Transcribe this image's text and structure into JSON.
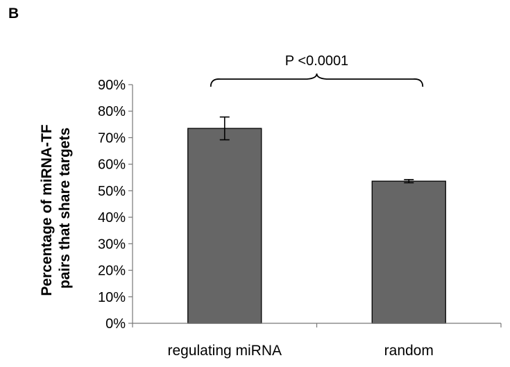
{
  "panel_label": "B",
  "chart_data": {
    "type": "bar",
    "categories": [
      "regulating miRNA",
      "random"
    ],
    "values": [
      73.5,
      53.6
    ],
    "errors": [
      4.3,
      0.6
    ],
    "ylabel_lines": [
      "Percentage of miRNA-TF",
      "pairs that share targets"
    ],
    "xlabel": "",
    "ylim": [
      0,
      90
    ],
    "yticks": [
      0,
      10,
      20,
      30,
      40,
      50,
      60,
      70,
      80,
      90
    ],
    "ytick_labels": [
      "0%",
      "10%",
      "20%",
      "30%",
      "40%",
      "50%",
      "60%",
      "70%",
      "80%",
      "90%"
    ],
    "grid": false,
    "annotation": "P <0.0001",
    "bar_color": "#666666",
    "bar_edge_color": "#000000"
  }
}
